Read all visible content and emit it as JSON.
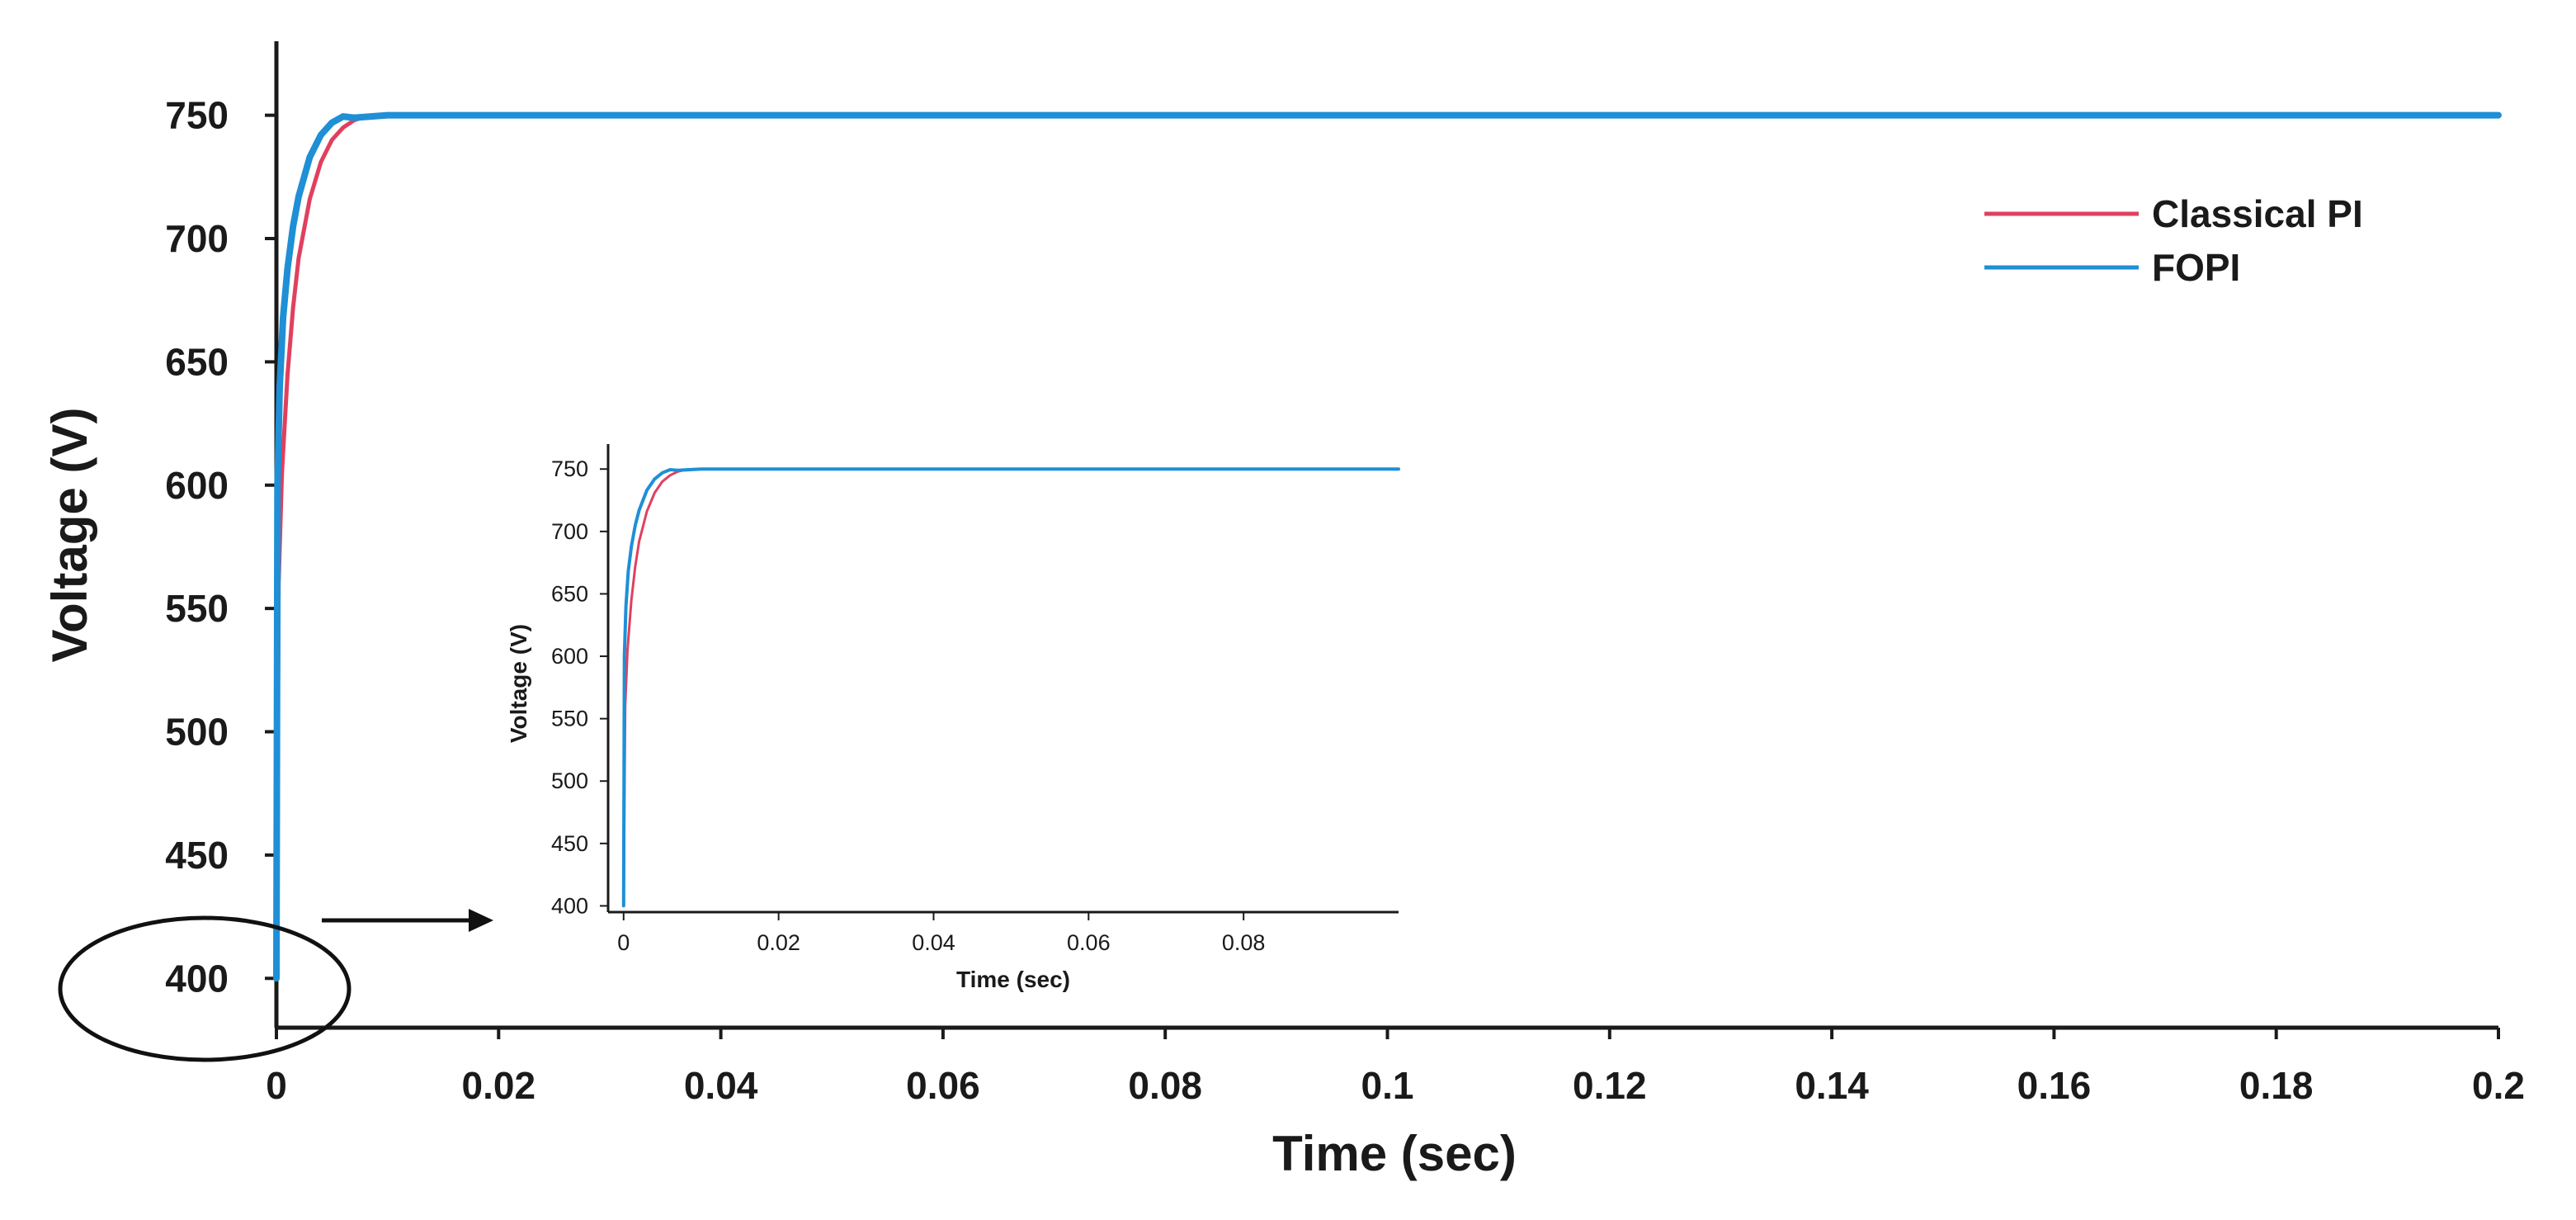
{
  "chart_data": [
    {
      "type": "line",
      "xlabel": "Time (sec)",
      "ylabel": "Voltage (V)",
      "xlim": [
        0,
        0.2
      ],
      "ylim": [
        380,
        780
      ],
      "xticks": [
        "0",
        "0.02",
        "0.04",
        "0.06",
        "0.08",
        "0.1",
        "0.12",
        "0.14",
        "0.16",
        "0.18",
        "0.2"
      ],
      "yticks": [
        "400",
        "450",
        "500",
        "550",
        "600",
        "650",
        "700",
        "750"
      ],
      "legend": "top-right",
      "grid": false,
      "series": [
        {
          "name": "Classical PI",
          "color": "#e0405e",
          "points": [
            [
              0,
              400
            ],
            [
              0.0002,
              560
            ],
            [
              0.0005,
              605
            ],
            [
              0.001,
              645
            ],
            [
              0.0015,
              672
            ],
            [
              0.002,
              692
            ],
            [
              0.003,
              716
            ],
            [
              0.004,
              731
            ],
            [
              0.005,
              740
            ],
            [
              0.006,
              745
            ],
            [
              0.007,
              748
            ],
            [
              0.008,
              749.5
            ],
            [
              0.01,
              750
            ],
            [
              0.2,
              750
            ]
          ]
        },
        {
          "name": "FOPI",
          "color": "#1f8fd6",
          "points": [
            [
              0,
              400
            ],
            [
              0.0001,
              600
            ],
            [
              0.0003,
              640
            ],
            [
              0.0006,
              668
            ],
            [
              0.001,
              688
            ],
            [
              0.0015,
              705
            ],
            [
              0.002,
              717
            ],
            [
              0.003,
              733
            ],
            [
              0.004,
              742
            ],
            [
              0.005,
              747
            ],
            [
              0.006,
              749.5
            ],
            [
              0.007,
              749
            ],
            [
              0.01,
              750
            ],
            [
              0.2,
              750
            ]
          ]
        }
      ]
    },
    {
      "type": "line",
      "xlabel": "Time (sec)",
      "ylabel": "Voltage (V)",
      "xlim": [
        -0.002,
        0.1
      ],
      "ylim": [
        395,
        770
      ],
      "xticks": [
        "0",
        "0.02",
        "0.04",
        "0.06",
        "0.08"
      ],
      "yticks": [
        "400",
        "450",
        "500",
        "550",
        "600",
        "650",
        "700",
        "750"
      ],
      "grid": false,
      "series": [
        {
          "color": "#e0405e",
          "points": [
            [
              0,
              400
            ],
            [
              0.0002,
              560
            ],
            [
              0.0005,
              605
            ],
            [
              0.001,
              645
            ],
            [
              0.0015,
              672
            ],
            [
              0.002,
              692
            ],
            [
              0.003,
              716
            ],
            [
              0.004,
              731
            ],
            [
              0.005,
              740
            ],
            [
              0.006,
              745
            ],
            [
              0.007,
              748
            ],
            [
              0.008,
              749.5
            ],
            [
              0.01,
              750
            ],
            [
              0.1,
              750
            ]
          ]
        },
        {
          "color": "#1f8fd6",
          "points": [
            [
              0,
              400
            ],
            [
              0.0001,
              600
            ],
            [
              0.0003,
              640
            ],
            [
              0.0006,
              668
            ],
            [
              0.001,
              688
            ],
            [
              0.0015,
              705
            ],
            [
              0.002,
              717
            ],
            [
              0.003,
              733
            ],
            [
              0.004,
              742
            ],
            [
              0.005,
              747
            ],
            [
              0.006,
              749.5
            ],
            [
              0.007,
              749
            ],
            [
              0.01,
              750
            ],
            [
              0.1,
              750
            ]
          ]
        }
      ]
    }
  ]
}
